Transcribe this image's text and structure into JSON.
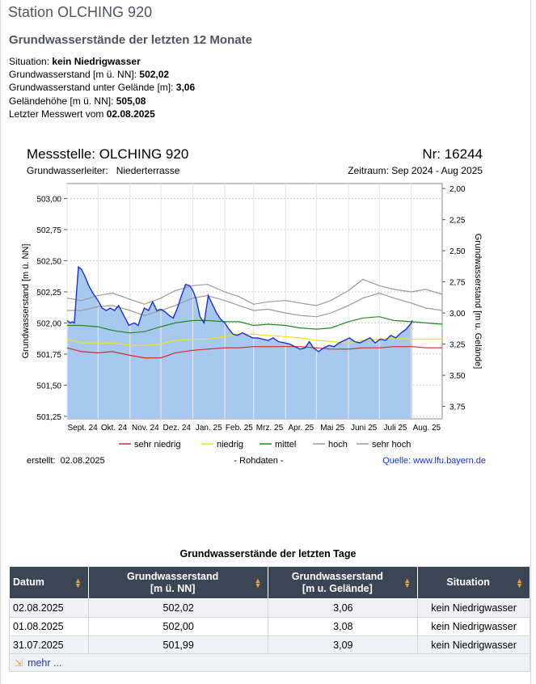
{
  "page": {
    "station_title": "Station OLCHING 920",
    "subtitle": "Grundwasserstände der letzten 12 Monate"
  },
  "facts": [
    {
      "label": "Situation: ",
      "value": "kein Niedrigwasser"
    },
    {
      "label": "Grundwasserstand [m ü. NN]: ",
      "value": "502,02"
    },
    {
      "label": "Grundwasserstand unter Gelände [m]: ",
      "value": "3,06"
    },
    {
      "label": "Geländehöhe [m ü. NN]: ",
      "value": "505,08"
    },
    {
      "label": "Letzter Messwert vom ",
      "value": "02.08.2025"
    }
  ],
  "chart_header": {
    "title": "Messstelle: OLCHING 920",
    "number": "Nr: 16244",
    "aquifer": "Grundwasserleiter:   Niederterrasse",
    "period": "Zeitraum: Sep 2024 - Aug 2025",
    "created": "erstellt:  02.08.2025",
    "note": "- Rohdaten -",
    "source": "Quelle: www.lfu.bayern.de"
  },
  "chart_data": {
    "type": "area",
    "ylabel": "Grundwasserstand [m ü. NN]",
    "y2label": "Grundwasserstand [m u. Gelände]",
    "ylim": [
      501.23,
      503.12
    ],
    "y_ticks": [
      "503,00",
      "502,75",
      "502,50",
      "502,25",
      "502,00",
      "501,75",
      "501,50",
      "501,25"
    ],
    "y_tick_values": [
      503.0,
      502.75,
      502.5,
      502.25,
      502.0,
      501.75,
      501.5,
      501.25
    ],
    "y2_ticks": [
      "2,00",
      "2,25",
      "2,50",
      "2,75",
      "3,00",
      "3,25",
      "3,50",
      "3,75"
    ],
    "y2_tick_values": [
      2.0,
      2.25,
      2.5,
      2.75,
      3.0,
      3.25,
      3.5,
      3.75
    ],
    "ground_level": 505.08,
    "x_range": [
      "2024-09-01",
      "2025-08-31"
    ],
    "x_ticks": [
      "Sept. 24",
      "Okt. 24",
      "Nov. 24",
      "Dez. 24",
      "Jan. 25",
      "Feb. 25",
      "Mrz. 25",
      "Apr. 25",
      "Mai 25",
      "Juni 25",
      "Juli 25",
      "Aug. 25"
    ],
    "x_tick_dates": [
      "2024-09-01",
      "2024-10-01",
      "2024-11-01",
      "2024-12-01",
      "2025-01-01",
      "2025-02-01",
      "2025-03-01",
      "2025-04-01",
      "2025-05-01",
      "2025-06-01",
      "2025-07-01",
      "2025-08-01"
    ],
    "grid": true,
    "legend_position": "bottom",
    "legend": [
      {
        "name": "sehr niedrig",
        "color": "#d62a2a"
      },
      {
        "name": "niedrig",
        "color": "#f2e21a"
      },
      {
        "name": "mittel",
        "color": "#1e8a1e"
      },
      {
        "name": "hoch",
        "color": "#9a9a9a"
      },
      {
        "name": "sehr hoch",
        "color": "#9a9a9a"
      }
    ],
    "area_fill": "#a7c8ef",
    "measurement_color": "#1a2fd6",
    "measured": {
      "name": "Grundwasserstand",
      "x": [
        "2024-09-01",
        "2024-09-04",
        "2024-09-06",
        "2024-09-08",
        "2024-09-12",
        "2024-09-15",
        "2024-09-18",
        "2024-09-22",
        "2024-09-26",
        "2024-10-01",
        "2024-10-05",
        "2024-10-09",
        "2024-10-13",
        "2024-10-17",
        "2024-10-21",
        "2024-10-26",
        "2024-10-31",
        "2024-11-05",
        "2024-11-09",
        "2024-11-12",
        "2024-11-15",
        "2024-11-19",
        "2024-11-23",
        "2024-11-27",
        "2024-12-01",
        "2024-12-05",
        "2024-12-09",
        "2024-12-13",
        "2024-12-17",
        "2024-12-21",
        "2024-12-25",
        "2024-12-29",
        "2025-01-01",
        "2025-01-04",
        "2025-01-08",
        "2025-01-12",
        "2025-01-16",
        "2025-01-20",
        "2025-01-24",
        "2025-01-28",
        "2025-02-01",
        "2025-02-05",
        "2025-02-09",
        "2025-02-13",
        "2025-02-18",
        "2025-02-23",
        "2025-02-28",
        "2025-03-05",
        "2025-03-10",
        "2025-03-15",
        "2025-03-20",
        "2025-03-25",
        "2025-03-31",
        "2025-04-05",
        "2025-04-10",
        "2025-04-15",
        "2025-04-20",
        "2025-04-24",
        "2025-04-28",
        "2025-05-03",
        "2025-05-08",
        "2025-05-13",
        "2025-05-18",
        "2025-05-23",
        "2025-05-28",
        "2025-06-02",
        "2025-06-07",
        "2025-06-12",
        "2025-06-17",
        "2025-06-22",
        "2025-06-27",
        "2025-07-02",
        "2025-07-07",
        "2025-07-12",
        "2025-07-17",
        "2025-07-22",
        "2025-07-27",
        "2025-07-31",
        "2025-08-01",
        "2025-08-02"
      ],
      "y": [
        502.02,
        502.0,
        502.01,
        502.0,
        502.45,
        502.43,
        502.38,
        502.3,
        502.24,
        502.18,
        502.12,
        502.1,
        502.12,
        502.1,
        502.14,
        502.06,
        501.98,
        502.0,
        501.98,
        502.06,
        502.12,
        502.1,
        502.17,
        502.1,
        502.11,
        502.09,
        502.06,
        502.04,
        502.12,
        502.22,
        502.31,
        502.3,
        502.26,
        502.2,
        502.05,
        502.0,
        502.22,
        502.15,
        502.08,
        502.03,
        502.0,
        501.95,
        501.91,
        501.9,
        501.92,
        501.9,
        501.88,
        501.88,
        501.87,
        501.86,
        501.88,
        501.85,
        501.84,
        501.83,
        501.81,
        501.79,
        501.8,
        501.85,
        501.8,
        501.77,
        501.8,
        501.82,
        501.81,
        501.84,
        501.86,
        501.88,
        501.85,
        501.84,
        501.86,
        501.88,
        501.84,
        501.87,
        501.86,
        501.9,
        501.88,
        501.92,
        501.95,
        501.99,
        502.0,
        502.02
      ]
    },
    "bands": [
      {
        "name": "sehr niedrig",
        "y": [
          501.8,
          501.77,
          501.76,
          501.77,
          501.74,
          501.72,
          501.72,
          501.76,
          501.78,
          501.79,
          501.8,
          501.8,
          501.81,
          501.81,
          501.81,
          501.81,
          501.8,
          501.79,
          501.79,
          501.8,
          501.8,
          501.81,
          501.81,
          501.8,
          501.8
        ]
      },
      {
        "name": "niedrig",
        "y": [
          501.87,
          501.84,
          501.84,
          501.84,
          501.82,
          501.82,
          501.83,
          501.86,
          501.87,
          501.87,
          501.89,
          501.91,
          501.91,
          501.9,
          501.89,
          501.88,
          501.86,
          501.85,
          501.84,
          501.86,
          501.87,
          501.88,
          501.87,
          501.87,
          501.87
        ]
      },
      {
        "name": "mittel",
        "y": [
          501.98,
          501.98,
          501.97,
          501.94,
          501.92,
          501.93,
          501.97,
          502.0,
          502.02,
          502.02,
          502.01,
          502.01,
          501.98,
          501.99,
          501.98,
          501.96,
          501.95,
          501.96,
          502.01,
          502.04,
          502.05,
          502.02,
          502.01,
          502.0,
          501.99
        ]
      },
      {
        "name": "hoch",
        "y": [
          502.1,
          502.1,
          502.13,
          502.14,
          502.1,
          502.06,
          502.1,
          502.14,
          502.2,
          502.22,
          502.18,
          502.14,
          502.1,
          502.11,
          502.08,
          502.06,
          502.05,
          502.08,
          502.14,
          502.2,
          502.24,
          502.2,
          502.16,
          502.12,
          502.1
        ]
      },
      {
        "name": "sehr hoch",
        "y": [
          502.2,
          502.18,
          502.22,
          502.24,
          502.19,
          502.15,
          502.2,
          502.26,
          502.3,
          502.31,
          502.25,
          502.21,
          502.15,
          502.17,
          502.18,
          502.16,
          502.14,
          502.18,
          502.26,
          502.35,
          502.3,
          502.27,
          502.25,
          502.27,
          502.23
        ]
      }
    ],
    "band_x": [
      "2024-09-01",
      "2024-09-15",
      "2024-10-01",
      "2024-10-15",
      "2024-11-01",
      "2024-11-15",
      "2024-12-01",
      "2024-12-15",
      "2025-01-01",
      "2025-01-15",
      "2025-02-01",
      "2025-02-15",
      "2025-03-01",
      "2025-03-15",
      "2025-04-01",
      "2025-04-15",
      "2025-05-01",
      "2025-05-15",
      "2025-06-01",
      "2025-06-15",
      "2025-07-01",
      "2025-07-15",
      "2025-08-01",
      "2025-08-15",
      "2025-08-31"
    ]
  },
  "recent_table": {
    "caption": "Grundwasserstände der letzten Tage",
    "headers": [
      {
        "line1": "Datum",
        "line2": ""
      },
      {
        "line1": "Grundwasserstand",
        "line2": "[m ü. NN]"
      },
      {
        "line1": "Grundwasserstand",
        "line2": "[m u. Gelände]"
      },
      {
        "line1": "Situation",
        "line2": ""
      }
    ],
    "rows": [
      [
        "02.08.2025",
        "502,02",
        "3,06",
        "kein Niedrigwasser"
      ],
      [
        "01.08.2025",
        "502,00",
        "3,08",
        "kein Niedrigwasser"
      ],
      [
        "31.07.2025",
        "501,99",
        "3,09",
        "kein Niedrigwasser"
      ]
    ],
    "more_label": "mehr ..."
  }
}
